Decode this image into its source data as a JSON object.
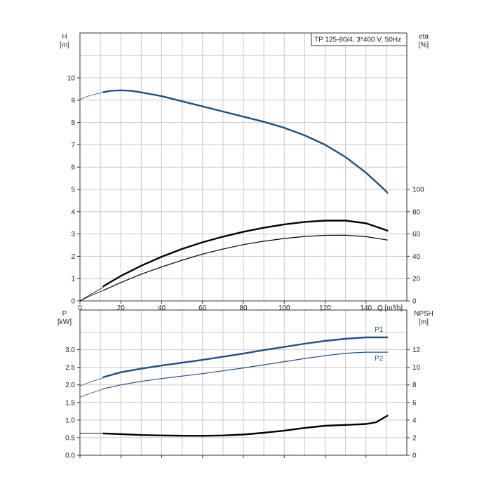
{
  "chart_data": [
    {
      "type": "line",
      "title": "TP 125-80/4, 3*400 V, 50Hz",
      "xlabel": "Q [m³/h]",
      "x_ticks": [
        0,
        20,
        40,
        60,
        80,
        100,
        120,
        140
      ],
      "xlim": [
        0,
        160
      ],
      "left_axis": {
        "label_line1": "H",
        "label_line2": "[m]",
        "ylim": [
          0,
          10
        ],
        "ticks": [
          0,
          1,
          2,
          3,
          4,
          5,
          6,
          7,
          8,
          9,
          10
        ]
      },
      "right_axis": {
        "label_line1": "eta",
        "label_line2": "[%]",
        "ylim": [
          0,
          100
        ],
        "ticks": [
          0,
          20,
          40,
          60,
          80,
          100
        ]
      },
      "grid": true,
      "series": [
        {
          "axis": "left",
          "color": "#1f4e8c",
          "ext": [
            [
              0,
              9.03
            ],
            [
              4,
              9.18
            ],
            [
              8,
              9.28
            ],
            [
              11.5,
              9.35
            ]
          ],
          "main": [
            [
              11.5,
              9.36
            ],
            [
              15,
              9.42
            ],
            [
              20,
              9.44
            ],
            [
              25,
              9.42
            ],
            [
              30,
              9.35
            ],
            [
              40,
              9.18
            ],
            [
              50,
              8.95
            ],
            [
              60,
              8.72
            ],
            [
              70,
              8.49
            ],
            [
              80,
              8.26
            ],
            [
              90,
              8.03
            ],
            [
              100,
              7.76
            ],
            [
              110,
              7.42
            ],
            [
              120,
              7.0
            ],
            [
              130,
              6.45
            ],
            [
              140,
              5.75
            ],
            [
              148,
              5.08
            ],
            [
              150.5,
              4.86
            ]
          ]
        },
        {
          "axis": "right",
          "color": "#000000",
          "thin": true,
          "ext": [
            [
              0,
              0
            ],
            [
              5,
              4.5
            ],
            [
              11.5,
              9.5
            ]
          ],
          "main": [
            [
              11.5,
              9.5
            ],
            [
              20,
              16.5
            ],
            [
              30,
              24
            ],
            [
              40,
              30.5
            ],
            [
              50,
              36.5
            ],
            [
              60,
              42
            ],
            [
              70,
              46.5
            ],
            [
              80,
              50.5
            ],
            [
              90,
              53.5
            ],
            [
              100,
              56
            ],
            [
              110,
              57.8
            ],
            [
              120,
              58.8
            ],
            [
              130,
              58.9
            ],
            [
              140,
              57.6
            ],
            [
              150.5,
              54.6
            ]
          ]
        },
        {
          "axis": "left",
          "color": "#000000",
          "ext": [
            [
              0,
              0
            ],
            [
              5,
              0.28
            ],
            [
              11.5,
              0.62
            ]
          ],
          "main": [
            [
              11.5,
              0.66
            ],
            [
              20,
              1.12
            ],
            [
              30,
              1.58
            ],
            [
              40,
              1.98
            ],
            [
              50,
              2.33
            ],
            [
              60,
              2.63
            ],
            [
              70,
              2.88
            ],
            [
              80,
              3.1
            ],
            [
              90,
              3.28
            ],
            [
              100,
              3.43
            ],
            [
              110,
              3.54
            ],
            [
              120,
              3.6
            ],
            [
              130,
              3.6
            ],
            [
              140,
              3.48
            ],
            [
              150.5,
              3.15
            ]
          ]
        }
      ]
    },
    {
      "type": "line",
      "x_ticks": [
        0,
        20,
        40,
        60,
        80,
        100,
        120,
        140
      ],
      "xlim": [
        0,
        160
      ],
      "left_axis": {
        "label_line1": "P",
        "label_line2": "[kW]",
        "ylim": [
          0,
          3.5
        ],
        "ticks": [
          "0.0",
          "0.5",
          "1.0",
          "1.5",
          "2.0",
          "2.5",
          "3.0"
        ]
      },
      "right_axis": {
        "label_line1": "NPSH",
        "label_line2": "[m]",
        "ylim": [
          0,
          14
        ],
        "ticks": [
          0,
          2,
          4,
          6,
          8,
          10,
          12
        ]
      },
      "grid": true,
      "series": [
        {
          "name": "P1",
          "axis": "left",
          "color": "#1f4e8c",
          "ext": [
            [
              0,
              1.97
            ],
            [
              6,
              2.1
            ],
            [
              11.5,
              2.2
            ]
          ],
          "main": [
            [
              11.5,
              2.22
            ],
            [
              20,
              2.36
            ],
            [
              30,
              2.46
            ],
            [
              40,
              2.55
            ],
            [
              50,
              2.63
            ],
            [
              60,
              2.71
            ],
            [
              70,
              2.8
            ],
            [
              80,
              2.89
            ],
            [
              90,
              2.99
            ],
            [
              100,
              3.08
            ],
            [
              110,
              3.17
            ],
            [
              120,
              3.25
            ],
            [
              130,
              3.31
            ],
            [
              140,
              3.35
            ],
            [
              150.5,
              3.35
            ]
          ]
        },
        {
          "name": "P2",
          "axis": "left",
          "color": "#1f4e8c",
          "thin": true,
          "ext": [
            [
              0,
              1.65
            ],
            [
              6,
              1.78
            ],
            [
              11.5,
              1.88
            ]
          ],
          "main": [
            [
              11.5,
              1.89
            ],
            [
              20,
              2.0
            ],
            [
              30,
              2.1
            ],
            [
              40,
              2.18
            ],
            [
              50,
              2.25
            ],
            [
              60,
              2.32
            ],
            [
              70,
              2.4
            ],
            [
              80,
              2.48
            ],
            [
              90,
              2.57
            ],
            [
              100,
              2.66
            ],
            [
              110,
              2.75
            ],
            [
              120,
              2.83
            ],
            [
              130,
              2.9
            ],
            [
              140,
              2.93
            ],
            [
              150.5,
              2.93
            ]
          ]
        },
        {
          "axis": "right",
          "color": "#000000",
          "ext": [
            [
              0,
              2.5
            ],
            [
              11.5,
              2.5
            ]
          ],
          "main": [
            [
              11.5,
              2.48
            ],
            [
              20,
              2.4
            ],
            [
              30,
              2.3
            ],
            [
              40,
              2.25
            ],
            [
              50,
              2.22
            ],
            [
              60,
              2.21
            ],
            [
              70,
              2.25
            ],
            [
              80,
              2.35
            ],
            [
              90,
              2.55
            ],
            [
              100,
              2.8
            ],
            [
              110,
              3.1
            ],
            [
              120,
              3.35
            ],
            [
              130,
              3.45
            ],
            [
              140,
              3.55
            ],
            [
              145,
              3.75
            ],
            [
              150.5,
              4.5
            ]
          ]
        }
      ]
    }
  ]
}
